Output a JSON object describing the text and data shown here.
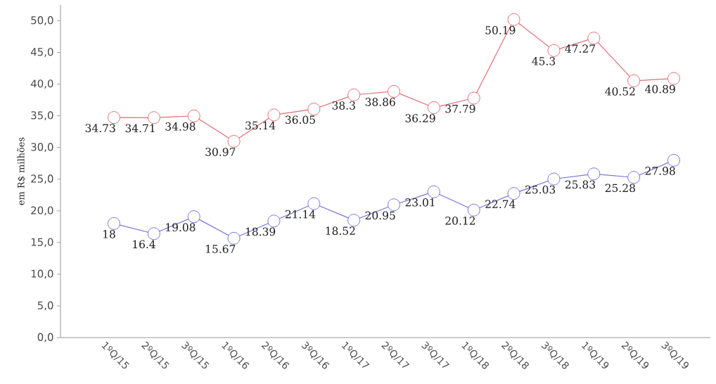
{
  "chart_data": {
    "type": "line",
    "ylabel": "em R$ milhões",
    "categories": [
      "1ºQ/15",
      "2ºQ/15",
      "3ºQ/15",
      "1ºQ/16",
      "2ºQ/16",
      "3ºQ/16",
      "1ºQ/17",
      "2ºQ/17",
      "3ºQ/17",
      "1ºQ/18",
      "2ºQ/18",
      "3ºQ/18",
      "1ºQ/19",
      "2ºQ/19",
      "3ºQ/19"
    ],
    "series": [
      {
        "color": "#e46c74",
        "values": [
          34.73,
          34.71,
          34.98,
          30.97,
          35.14,
          36.05,
          38.3,
          38.86,
          36.29,
          37.79,
          50.19,
          45.3,
          47.27,
          40.52,
          40.89
        ]
      },
      {
        "color": "#7474dc",
        "values": [
          18,
          16.4,
          19.08,
          15.67,
          18.39,
          21.14,
          18.52,
          20.95,
          23.01,
          20.12,
          22.74,
          25.03,
          25.83,
          25.28,
          27.98
        ]
      }
    ],
    "ylim": [
      0,
      52.5
    ],
    "yticks": [
      {
        "value": 0,
        "label": "0,0"
      },
      {
        "value": 5,
        "label": "5,0"
      },
      {
        "value": 10,
        "label": "10,0"
      },
      {
        "value": 15,
        "label": "15,0"
      },
      {
        "value": 20,
        "label": "20,0"
      },
      {
        "value": 25,
        "label": "25,0"
      },
      {
        "value": 30,
        "label": "30,0"
      },
      {
        "value": 35,
        "label": "35,0"
      },
      {
        "value": 40,
        "label": "40,0"
      },
      {
        "value": 45,
        "label": "45,0"
      },
      {
        "value": 50,
        "label": "50,0"
      }
    ],
    "data_labels": true,
    "marker": "circle",
    "line_style": "solid"
  }
}
